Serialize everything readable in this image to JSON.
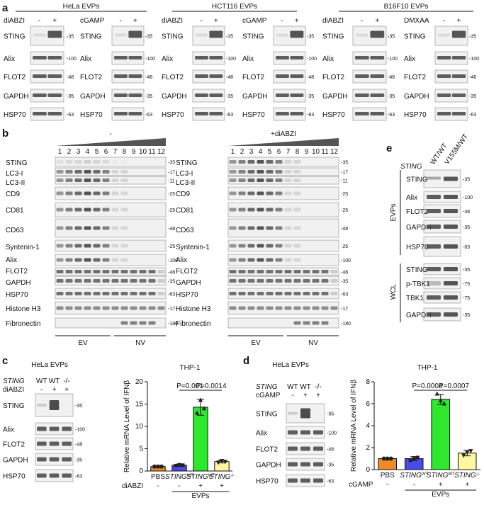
{
  "panel_a": {
    "letter": "a",
    "headers": [
      "HeLa EVPs",
      "HCT116 EVPs",
      "B16F10 EVPs"
    ],
    "blots": [
      {
        "treatment": "diABZI"
      },
      {
        "treatment": "cGAMP"
      },
      {
        "treatment": "diABZI"
      },
      {
        "treatment": "cGAMP"
      },
      {
        "treatment": "diABZI"
      },
      {
        "treatment": "DMXAA"
      }
    ],
    "signs": [
      "-",
      "+"
    ],
    "rows": [
      {
        "label": "STING",
        "mw": "35"
      },
      {
        "label": "Alix",
        "mw": "100"
      },
      {
        "label": "FLOT2",
        "mw": "48"
      },
      {
        "label": "GAPDH",
        "mw": "35"
      },
      {
        "label": "HSP70",
        "mw": "63"
      }
    ]
  },
  "panel_b": {
    "letter": "b",
    "left_title": "-",
    "right_title": "+diABZI",
    "fractions": [
      "1",
      "2",
      "3",
      "4",
      "5",
      "6",
      "7",
      "8",
      "9",
      "10",
      "11",
      "12"
    ],
    "rows": [
      {
        "label": "STING",
        "mw": "35"
      },
      {
        "label": "LC3-I",
        "mw": "17"
      },
      {
        "label": "LC3-II",
        "mw": "11"
      },
      {
        "label": "CD9",
        "mw": "25"
      },
      {
        "label": "CD81",
        "mw": "25"
      },
      {
        "label": "CD63",
        "mw": "48"
      },
      {
        "label": "Syntenin-1",
        "mw": "25"
      },
      {
        "label": "Alix",
        "mw": "100"
      },
      {
        "label": "FLOT2",
        "mw": "48"
      },
      {
        "label": "GAPDH",
        "mw": "35"
      },
      {
        "label": "HSP70",
        "mw": "63"
      },
      {
        "label": "Histone H3",
        "mw": "17"
      },
      {
        "label": "Fibronectin",
        "mw": "180"
      }
    ],
    "groups": [
      "EV",
      "NV"
    ]
  },
  "panel_e": {
    "letter": "e",
    "gene": "STING",
    "lanes": [
      "WT/WT",
      "V155M/WT"
    ],
    "sections": [
      "EVPs",
      "WCL"
    ],
    "evp_rows": [
      {
        "label": "STING",
        "mw": "35"
      },
      {
        "label": "Alix",
        "mw": "100"
      },
      {
        "label": "FLOT2",
        "mw": "48"
      },
      {
        "label": "GAPDH",
        "mw": "35"
      },
      {
        "label": "HSP70",
        "mw": "63"
      }
    ],
    "wcl_rows": [
      {
        "label": "STING",
        "mw": "35"
      },
      {
        "label": "p-TBK1",
        "mw": "75"
      },
      {
        "label": "TBK1",
        "mw": "75"
      },
      {
        "label": "GAPDH",
        "mw": "35"
      }
    ]
  },
  "panel_c": {
    "letter": "c",
    "blot_title": "HeLa EVPs",
    "gene": "STING",
    "genotypes": [
      "WT",
      "WT",
      "-/-"
    ],
    "treatment": "diABZI",
    "treat_signs": [
      "-",
      "+",
      "+"
    ],
    "rows": [
      {
        "label": "STING",
        "mw": "35"
      },
      {
        "label": "Alix",
        "mw": "100"
      },
      {
        "label": "FLOT2",
        "mw": "48"
      },
      {
        "label": "GAPDH",
        "mw": "35"
      },
      {
        "label": "HSP70",
        "mw": "63"
      }
    ],
    "chart_title": "THP-1",
    "p_values": [
      "P=0.001",
      "P=0.0014"
    ],
    "treat_row_label": "diABZI",
    "treat_row_signs": [
      "-",
      "-",
      "+",
      "+"
    ],
    "evps_label": "EVPs"
  },
  "panel_d": {
    "letter": "d",
    "blot_title": "HeLa EVPs",
    "gene": "STING",
    "genotypes": [
      "WT",
      "WT",
      "-/-"
    ],
    "treatment": "cGAMP",
    "treat_signs": [
      "-",
      "+",
      "+"
    ],
    "rows": [
      {
        "label": "STING",
        "mw": "35"
      },
      {
        "label": "Alix",
        "mw": "100"
      },
      {
        "label": "FLOT2",
        "mw": "48"
      },
      {
        "label": "GAPDH",
        "mw": "35"
      },
      {
        "label": "HSP70",
        "mw": "63"
      }
    ],
    "chart_title": "THP-1",
    "p_values": [
      "P=0.0004",
      "P=0.0007"
    ],
    "treat_row_label": "cGAMP",
    "treat_row_signs": [
      "-",
      "-",
      "+",
      "+"
    ],
    "evps_label": "EVPs"
  },
  "chart_data": [
    {
      "type": "bar",
      "title": "THP-1",
      "ylabel": "Relative mRNA Level of IFNβ",
      "categories": [
        "PBS",
        "STING WT",
        "STING WT",
        "STING -/-"
      ],
      "values": [
        1.0,
        1.3,
        14.3,
        2.1
      ],
      "errors": [
        0.1,
        0.25,
        1.8,
        0.3
      ],
      "points": [
        [
          1.0,
          1.0,
          1.0
        ],
        [
          1.2,
          1.4,
          1.3
        ],
        [
          13.0,
          15.9,
          14.0
        ],
        [
          1.9,
          2.3,
          2.1
        ]
      ],
      "ylim": [
        0,
        20
      ],
      "yticks": [
        0,
        5,
        10,
        15,
        20
      ],
      "colors": [
        "#f08a24",
        "#4a4ae6",
        "#2ee82e",
        "#fdf7a0"
      ]
    },
    {
      "type": "bar",
      "title": "THP-1",
      "ylabel": "Relative mRNA Level of IFNβ",
      "categories": [
        "PBS",
        "STING WT",
        "STING WT",
        "STING -/-"
      ],
      "values": [
        1.0,
        1.0,
        6.4,
        1.5
      ],
      "errors": [
        0.05,
        0.18,
        0.45,
        0.25
      ],
      "points": [
        [
          1.0,
          1.0,
          1.0
        ],
        [
          0.85,
          1.05,
          1.1
        ],
        [
          6.9,
          6.3,
          6.0
        ],
        [
          1.3,
          1.6,
          1.7
        ]
      ],
      "ylim": [
        0,
        8
      ],
      "yticks": [
        0,
        2,
        4,
        6,
        8
      ],
      "colors": [
        "#f08a24",
        "#4a4ae6",
        "#2ee82e",
        "#fdf7a0"
      ]
    }
  ]
}
